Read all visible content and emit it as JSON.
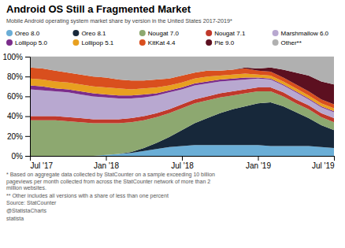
{
  "chart_data": {
    "type": "area",
    "stacked": true,
    "title": "Android OS Still a Fragmented Market",
    "subtitle": "Mobile Android operating system market share by version in the United States 2017-2019*",
    "annotations": [
      "* Based on aggregate data collected by StatCounter on a sample exceeding 10 billion\npageviews per month collected from across the StatCounter network of more than 2\nmillion websites.",
      "** Other includes all versions with a share of less than one percent",
      "Source: StatCounter",
      "@StatistaCharts",
      "statista"
    ],
    "categories": [
      "Jul '17",
      null,
      null,
      null,
      null,
      null,
      "Jan '18",
      null,
      null,
      null,
      null,
      null,
      "Jul '18",
      null,
      null,
      null,
      null,
      null,
      "Jan '19",
      null,
      null,
      null,
      null,
      null,
      "Jul '19"
    ],
    "series": [
      {
        "name": "Oreo 8.0",
        "color": "#6baed6",
        "values": [
          0,
          0,
          0,
          0,
          0,
          0,
          1,
          2,
          3,
          5,
          7,
          9,
          10,
          11,
          11,
          11,
          11,
          11,
          11,
          10,
          10,
          10,
          10,
          9,
          8
        ]
      },
      {
        "name": "Oreo 8.1",
        "color": "#17283a",
        "values": [
          0,
          0,
          0,
          0,
          0,
          0,
          0,
          0,
          1,
          3,
          6,
          10,
          16,
          22,
          27,
          32,
          36,
          39,
          42,
          44,
          40,
          34,
          28,
          22,
          18
        ]
      },
      {
        "name": "Nougat 7.0",
        "color": "#8da870",
        "values": [
          36,
          36,
          36,
          35,
          34,
          33,
          32,
          31,
          30,
          28,
          26,
          24,
          22,
          20,
          18,
          16,
          14,
          13,
          12,
          11,
          10,
          9,
          9,
          8,
          8
        ]
      },
      {
        "name": "Nougat 7.1",
        "color": "#c0392b",
        "values": [
          4,
          4,
          4,
          4,
          4,
          4,
          4,
          4,
          4,
          4,
          4,
          4,
          4,
          4,
          4,
          4,
          4,
          4,
          4,
          4,
          4,
          4,
          4,
          4,
          4
        ]
      },
      {
        "name": "Marshmallow 6.0",
        "color": "#b8a8d0",
        "values": [
          27,
          26,
          25,
          25,
          24,
          23,
          22,
          21,
          20,
          19,
          18,
          17,
          15,
          14,
          13,
          12,
          11,
          10,
          9,
          8,
          7,
          7,
          6,
          6,
          6
        ]
      },
      {
        "name": "Lollipop 5.0",
        "color": "#7b2d8b",
        "values": [
          4,
          4,
          3,
          3,
          3,
          3,
          3,
          3,
          3,
          3,
          2,
          2,
          2,
          2,
          2,
          2,
          2,
          2,
          1,
          1,
          1,
          1,
          1,
          1,
          1
        ]
      },
      {
        "name": "Lollipop 5.1",
        "color": "#e8a020",
        "values": [
          7,
          7,
          7,
          7,
          7,
          7,
          7,
          7,
          6,
          6,
          6,
          5,
          5,
          5,
          5,
          4,
          4,
          4,
          3,
          3,
          3,
          3,
          3,
          3,
          3
        ]
      },
      {
        "name": "KitKat 4.4",
        "color": "#d94f1e",
        "values": [
          11,
          11,
          11,
          10,
          10,
          10,
          10,
          9,
          9,
          8,
          8,
          7,
          7,
          6,
          6,
          5,
          5,
          5,
          4,
          4,
          4,
          4,
          4,
          4,
          4
        ]
      },
      {
        "name": "Pie 9.0",
        "color": "#5c1020",
        "values": [
          0,
          0,
          0,
          0,
          0,
          0,
          0,
          0,
          0,
          0,
          0,
          0,
          0,
          0,
          0,
          0,
          0,
          1,
          2,
          4,
          8,
          12,
          16,
          18,
          20
        ]
      },
      {
        "name": "Other**",
        "color": "#b0b0b0",
        "values": [
          11,
          12,
          14,
          16,
          18,
          20,
          21,
          23,
          24,
          24,
          23,
          22,
          19,
          16,
          14,
          14,
          13,
          11,
          12,
          11,
          13,
          16,
          19,
          25,
          28
        ]
      }
    ],
    "ylim": [
      0,
      100
    ],
    "yticks": [
      {
        "value": 0,
        "label": "0%"
      },
      {
        "value": 20,
        "label": "20%"
      },
      {
        "value": 40,
        "label": "40%"
      },
      {
        "value": 60,
        "label": "60%"
      },
      {
        "value": 80,
        "label": "80%"
      },
      {
        "value": 100,
        "label": "100%"
      }
    ],
    "grid": true,
    "legend": "top"
  }
}
